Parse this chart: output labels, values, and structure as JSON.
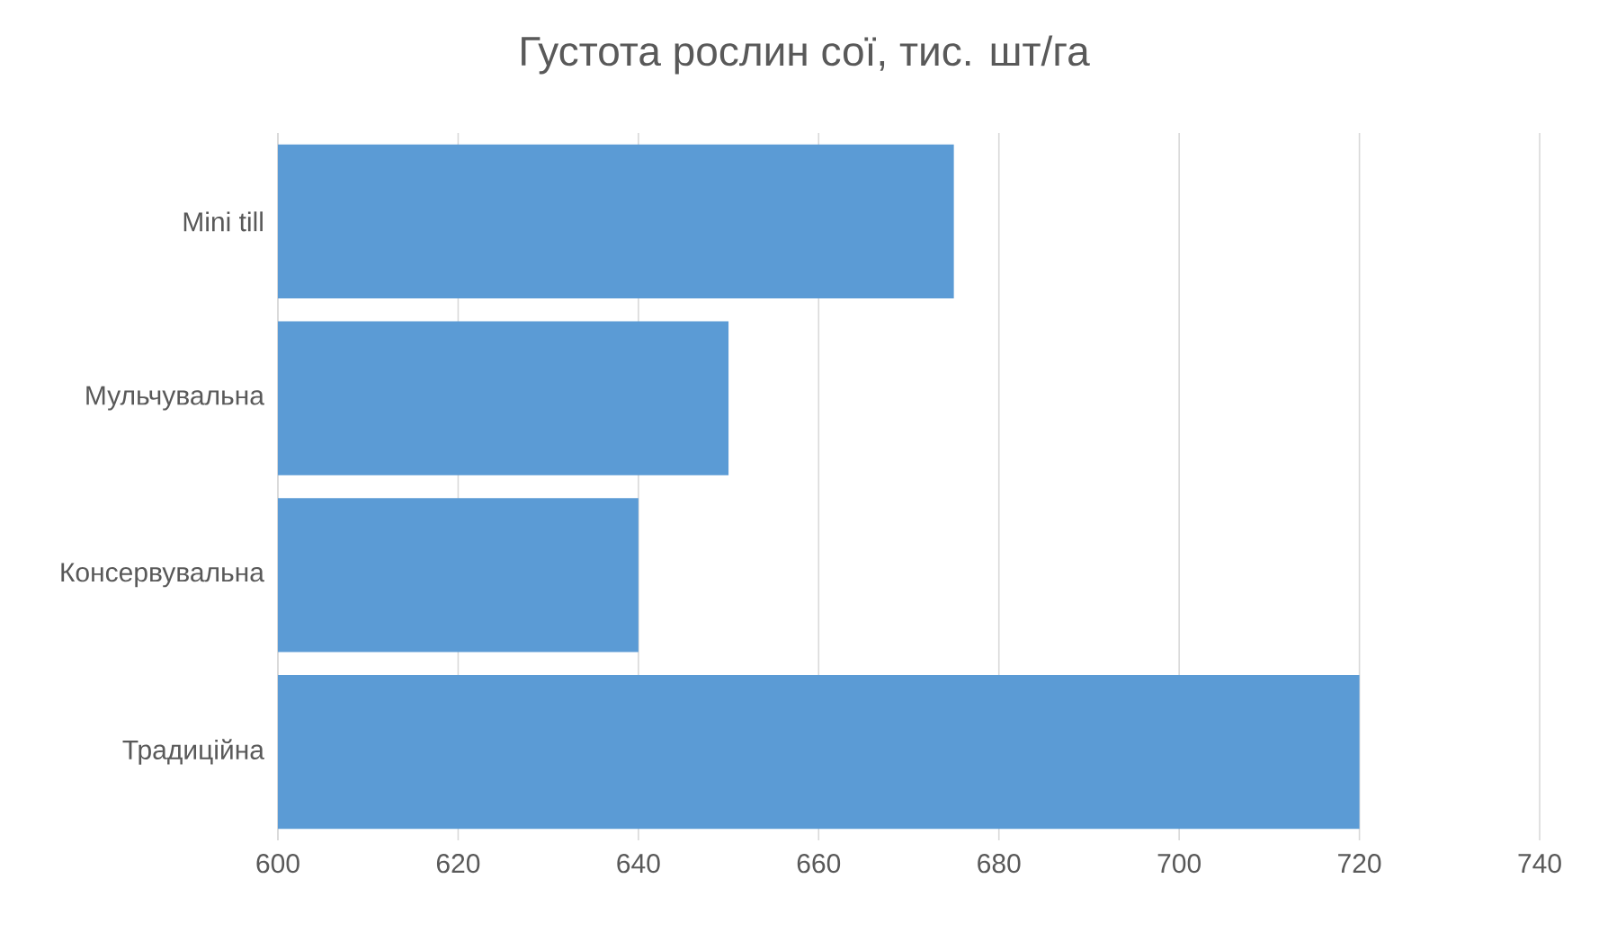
{
  "chart_data": {
    "type": "bar",
    "orientation": "horizontal",
    "title": "Густота рослин сої, тис. шт/га",
    "categories": [
      "Mini till",
      "Мульчувальна",
      "Консервувальна",
      "Традиційна"
    ],
    "values": [
      675,
      650,
      640,
      720
    ],
    "color": "#5b9bd5",
    "xlim": [
      600,
      740
    ],
    "xticks": [
      600,
      620,
      640,
      660,
      680,
      700,
      720,
      740
    ],
    "grid": "x"
  }
}
